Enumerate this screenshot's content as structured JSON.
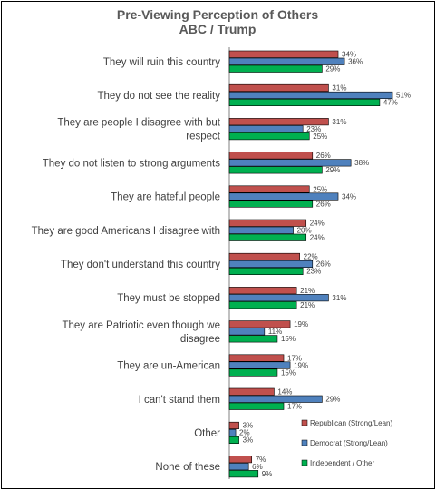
{
  "chart_data": {
    "type": "bar",
    "orientation": "horizontal",
    "title": "Pre-Viewing Perception of Others",
    "subtitle": "ABC / Trump",
    "categories": [
      [
        "They will ruin this country"
      ],
      [
        "They do not see the reality"
      ],
      [
        "They are people I disagree with but",
        "respect"
      ],
      [
        "They do not listen to strong arguments"
      ],
      [
        "They are hateful people"
      ],
      [
        "They are good Americans I disagree with"
      ],
      [
        "They don't understand this country"
      ],
      [
        "They must be stopped"
      ],
      [
        "They are Patriotic even though we",
        "disagree"
      ],
      [
        "They are un-American"
      ],
      [
        "I can't stand them"
      ],
      [
        "Other"
      ],
      [
        "None of these"
      ]
    ],
    "series": [
      {
        "name": "Republican (Strong/Lean)",
        "color": "#c0504d",
        "values": [
          34,
          31,
          31,
          26,
          25,
          24,
          22,
          21,
          19,
          17,
          14,
          3,
          7
        ]
      },
      {
        "name": "Democrat (Strong/Lean)",
        "color": "#4f81bd",
        "values": [
          36,
          51,
          23,
          38,
          34,
          20,
          26,
          31,
          11,
          19,
          29,
          2,
          6
        ]
      },
      {
        "name": "Independent / Other",
        "color": "#00b050",
        "values": [
          29,
          47,
          25,
          29,
          26,
          24,
          23,
          21,
          15,
          15,
          17,
          3,
          9
        ]
      }
    ],
    "value_suffix": "%",
    "legend_position": "bottom-right",
    "grid": false,
    "xlim": [
      0,
      51
    ]
  }
}
